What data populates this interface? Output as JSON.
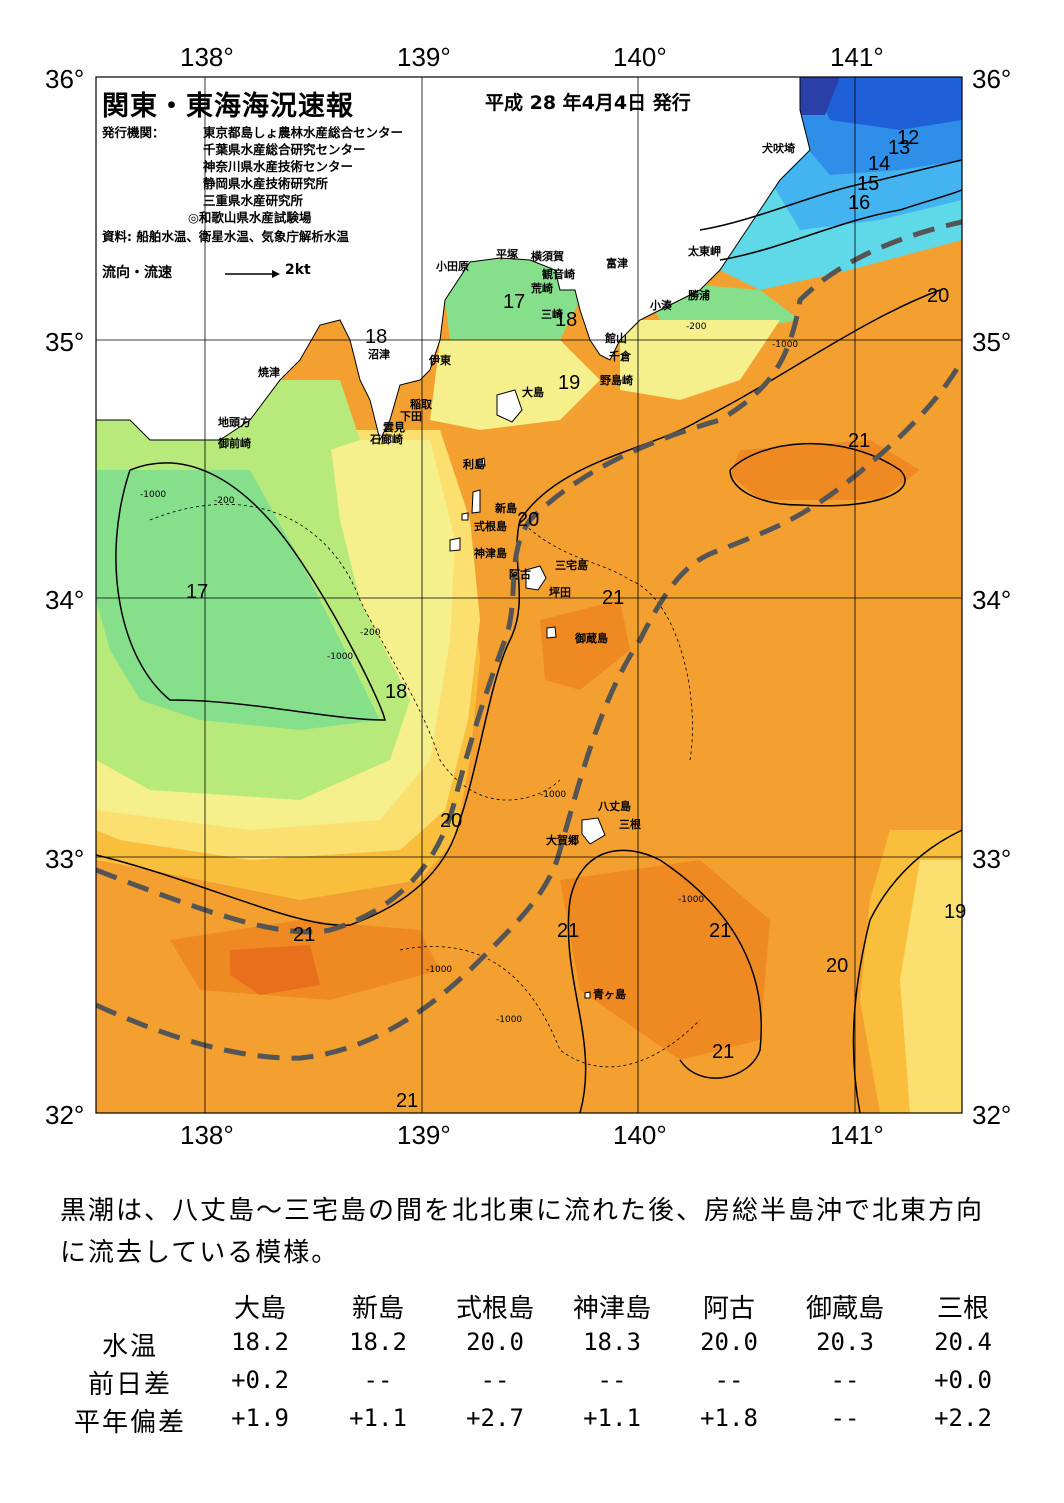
{
  "map": {
    "title": "関東・東海海況速報",
    "date": "平成 28 年4月4日 発行",
    "publisher_label": "発行機関：",
    "publishers": [
      "東京都島しょ農林水産総合センター",
      "千葉県水産総合研究センター",
      "神奈川県水産技術センター",
      "静岡県水産技術研究所",
      "三重県水産研究所",
      "◎和歌山県水産試験場"
    ],
    "sources": "資料: 船舶水温、衛星水温、気象庁解析水温",
    "flow_legend_label": "流向・流速",
    "flow_legend_unit": "2kt",
    "lon_labels": [
      "138°",
      "139°",
      "140°",
      "141°"
    ],
    "lat_labels": [
      "36°",
      "35°",
      "34°",
      "33°",
      "32°"
    ],
    "place_names": {
      "inubozaki": "犬吠埼",
      "taitomisaki": "太東岬",
      "katsuura": "勝浦",
      "kominato": "小湊",
      "futtsu": "富津",
      "yokosuka": "横須賀",
      "kannonzaki": "観音崎",
      "hiratsuka": "平塚",
      "odawara": "小田原",
      "arasaki": "荒崎",
      "misaki": "三崎",
      "tateyama": "館山",
      "chikura": "千倉",
      "nojimazaki": "野島崎",
      "numazu": "沼津",
      "ito": "伊東",
      "yaizu": "焼津",
      "omaezaki_area": "地頭方",
      "omaezaki": "御前崎",
      "inatori": "稲取",
      "shimoda": "下田",
      "kumomi": "雲見",
      "irozaki": "石廊崎",
      "oshima": "大島",
      "toshima": "利島",
      "niijima": "新島",
      "shikinejima": "式根島",
      "kozushima": "神津島",
      "miyakejima": "三宅島",
      "ako": "阿古",
      "tsubota": "坪田",
      "mikurajima": "御蔵島",
      "hachijojima": "八丈島",
      "mitsune": "三根",
      "okago": "大賀郷",
      "aogashima": "青ヶ島"
    },
    "isotherm_labels": [
      "12",
      "13",
      "14",
      "15",
      "16",
      "17",
      "18",
      "18",
      "17",
      "19",
      "20",
      "20",
      "20",
      "21",
      "21",
      "21",
      "21",
      "21",
      "21",
      "21",
      "20",
      "18",
      "17",
      "19",
      "20"
    ],
    "depth_labels": [
      "-200",
      "-1000"
    ]
  },
  "summary": "黒潮は、八丈島～三宅島の間を北北東に流れた後、房総半島沖で北東方向に流去している模様。",
  "table": {
    "headers": [
      "大島",
      "新島",
      "式根島",
      "神津島",
      "阿古",
      "御蔵島",
      "三根"
    ],
    "rows": [
      {
        "label": "水温",
        "values": [
          "18.2",
          "18.2",
          "20.0",
          "18.3",
          "20.0",
          "20.3",
          "20.4"
        ]
      },
      {
        "label": "前日差",
        "values": [
          "+0.2",
          "--",
          "--",
          "--",
          "--",
          "--",
          "+0.0"
        ]
      },
      {
        "label": "平年偏差",
        "values": [
          "+1.9",
          "+1.1",
          "+2.7",
          "+1.1",
          "+1.8",
          "--",
          "+2.2"
        ]
      }
    ]
  },
  "colors": {
    "land": "#ffffff",
    "t12": "#2a3fa8",
    "t13": "#1f5fd8",
    "t14": "#2f8ee8",
    "t15": "#44b4f0",
    "t16": "#5fd8e8",
    "t17": "#86df8a",
    "t18": "#b7ea7a",
    "t18b": "#f5f08c",
    "t19": "#fbe070",
    "t20": "#f9bf3c",
    "t21": "#f4a030",
    "t21b": "#ef8a22",
    "t22": "#e8701c",
    "kuroshio": "#555555"
  }
}
